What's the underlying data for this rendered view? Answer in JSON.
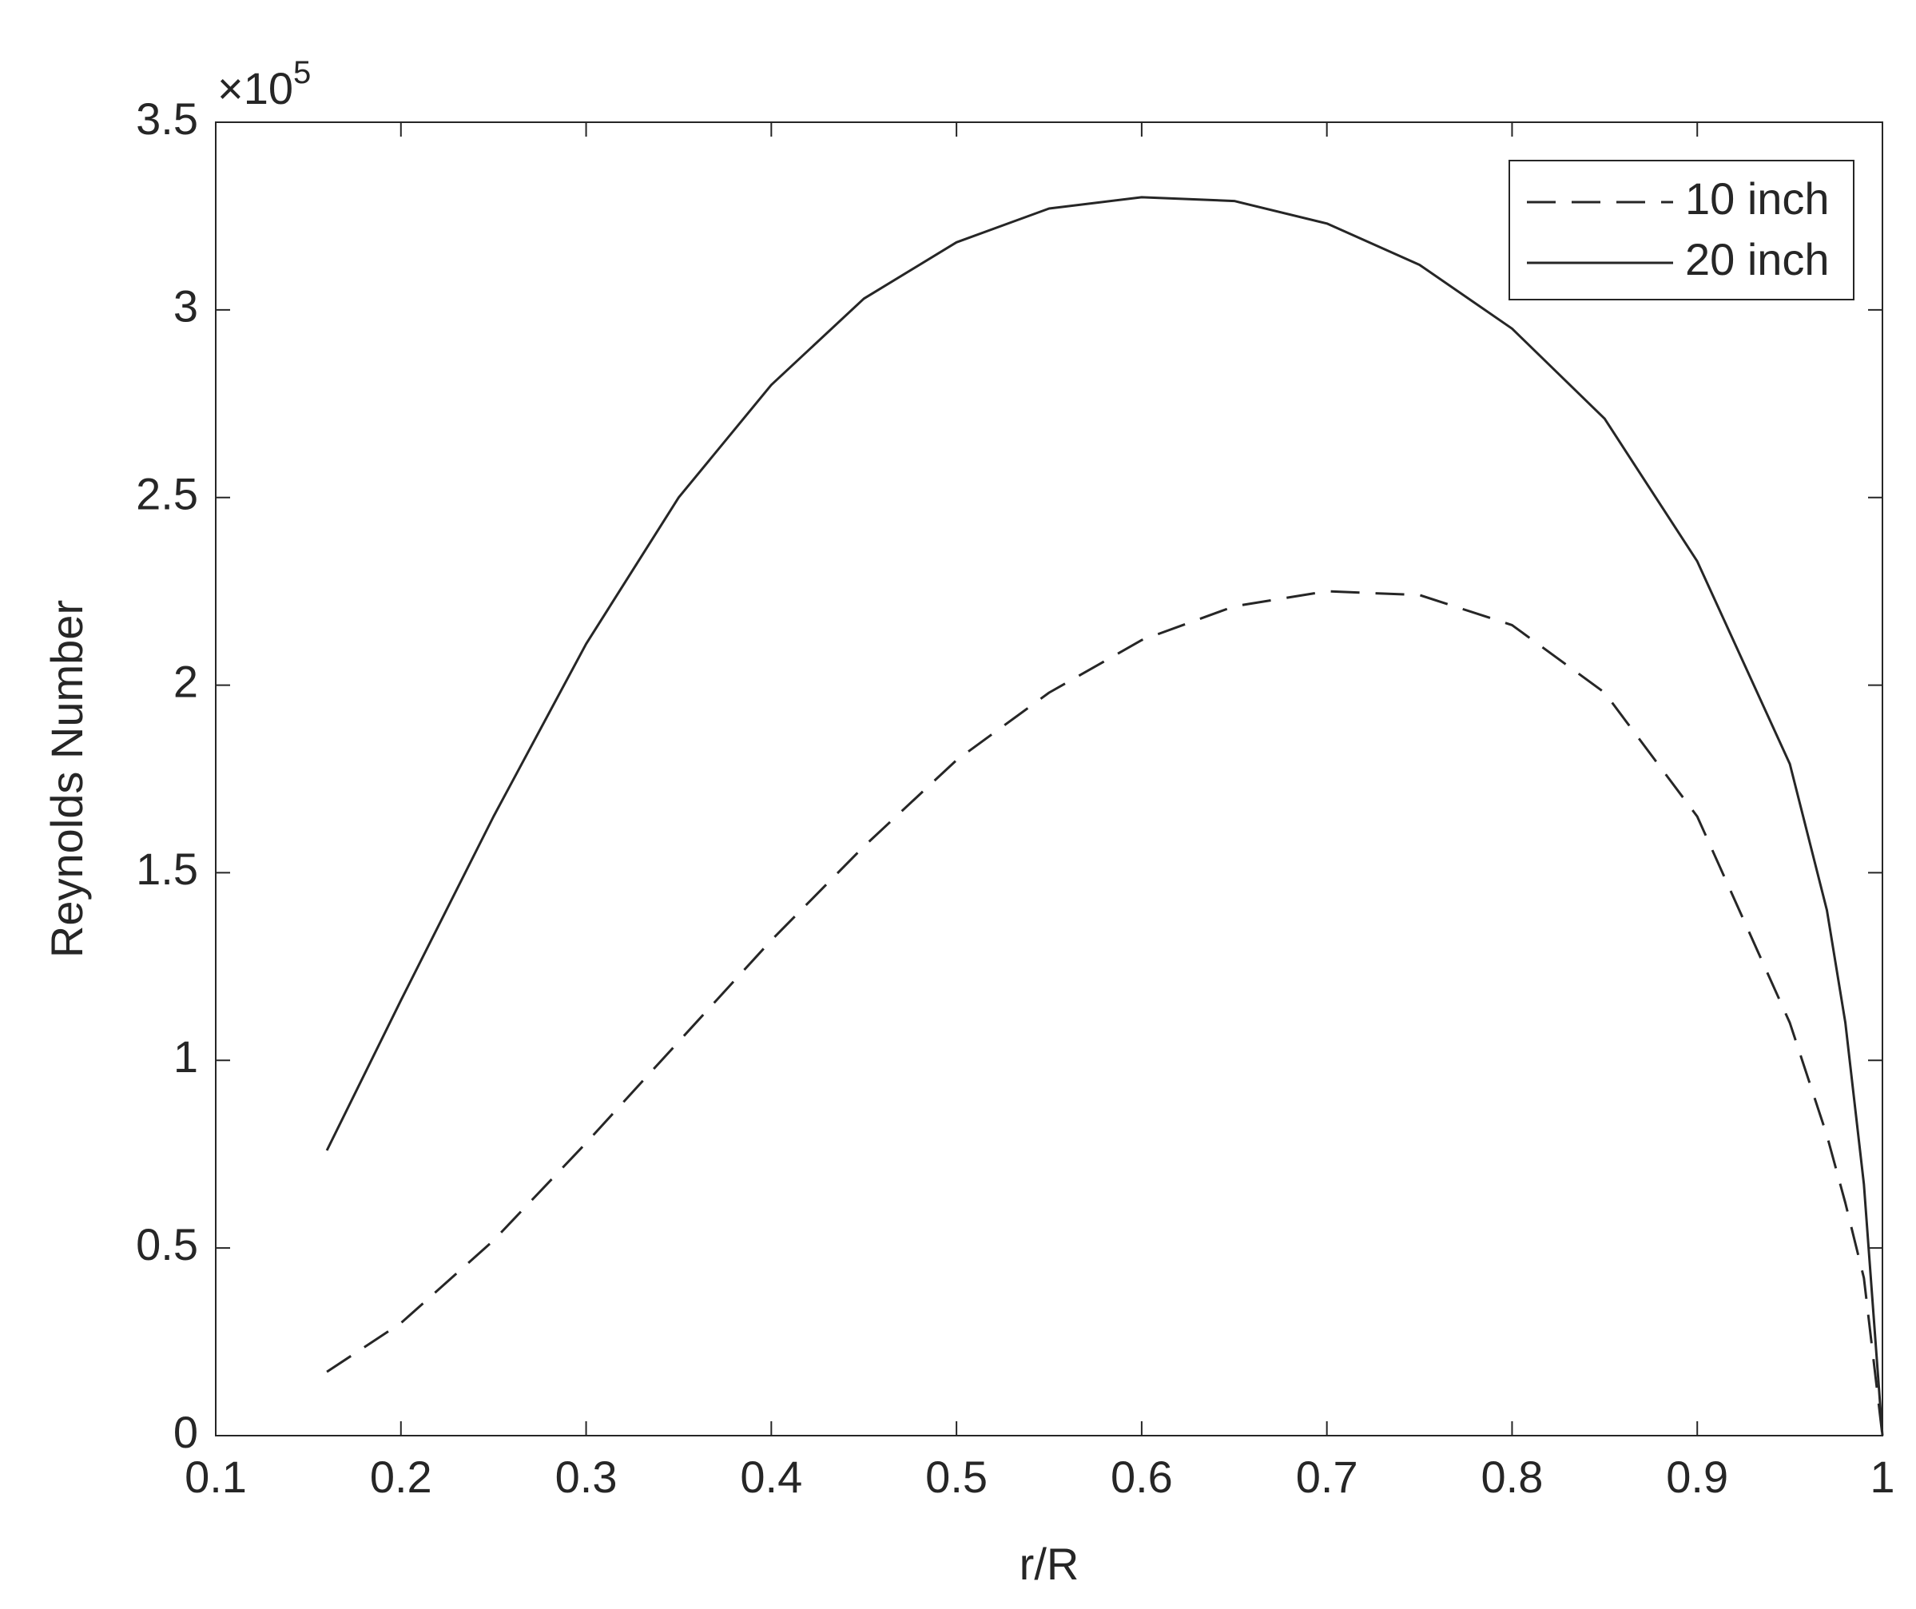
{
  "chart_data": {
    "type": "line",
    "xlabel": "r/R",
    "ylabel": "Reynolds Number",
    "y_multiplier": "×10",
    "y_multiplier_exponent": "5",
    "x": [
      0.16,
      0.2,
      0.25,
      0.3,
      0.35,
      0.4,
      0.45,
      0.5,
      0.55,
      0.6,
      0.65,
      0.7,
      0.75,
      0.8,
      0.85,
      0.9,
      0.95,
      0.97,
      0.98,
      0.99,
      1.0
    ],
    "series": [
      {
        "name": "10 inch",
        "color": "#262626",
        "linestyle": "dashed",
        "values": [
          0.17,
          0.3,
          0.52,
          0.78,
          1.05,
          1.32,
          1.57,
          1.8,
          1.98,
          2.12,
          2.21,
          2.25,
          2.24,
          2.16,
          1.98,
          1.65,
          1.1,
          0.8,
          0.62,
          0.42,
          0
        ]
      },
      {
        "name": "20 inch",
        "color": "#262626",
        "linestyle": "solid",
        "values": [
          0.76,
          1.16,
          1.65,
          2.11,
          2.5,
          2.8,
          3.03,
          3.18,
          3.27,
          3.3,
          3.29,
          3.23,
          3.12,
          2.95,
          2.71,
          2.33,
          1.79,
          1.4,
          1.1,
          0.67,
          0
        ]
      }
    ],
    "xlim": [
      0.1,
      1
    ],
    "xticks": [
      0.1,
      0.2,
      0.3,
      0.4,
      0.5,
      0.6,
      0.7,
      0.8,
      0.9,
      1
    ],
    "ylim": [
      0,
      3.5
    ],
    "yticks": [
      0,
      0.5,
      1,
      1.5,
      2,
      2.5,
      3,
      3.5
    ],
    "grid": false,
    "legend": "upper right"
  }
}
